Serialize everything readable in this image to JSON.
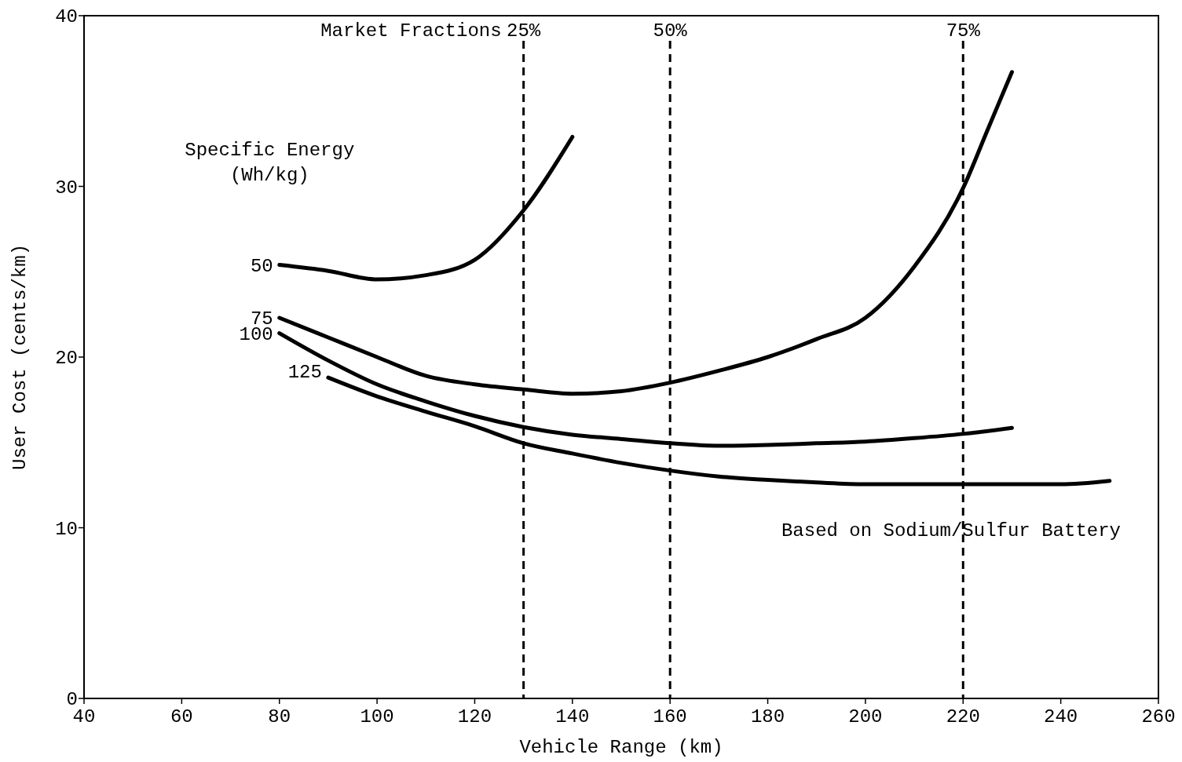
{
  "chart_data": {
    "type": "line",
    "xlabel": "Vehicle Range (km)",
    "ylabel": "User Cost (cents/km)",
    "legend_title": "Specific Energy\n(Wh/kg)",
    "xlim": [
      40,
      260
    ],
    "xticks": [
      40,
      60,
      80,
      100,
      120,
      140,
      160,
      180,
      200,
      220,
      240,
      260
    ],
    "ylim": [
      0,
      40
    ],
    "yticks": [
      0,
      10,
      20,
      30,
      40
    ],
    "grid": false,
    "marker": "none",
    "line_style": "solid",
    "series": [
      {
        "name": "50",
        "color": "#000000",
        "x": [
          80,
          90,
          100,
          110,
          120,
          130,
          140
        ],
        "values": [
          25.4,
          25.05,
          24.55,
          24.8,
          25.7,
          28.6,
          32.9
        ]
      },
      {
        "name": "75",
        "color": "#000000",
        "x": [
          80,
          90,
          100,
          110,
          120,
          130,
          140,
          150,
          160,
          170,
          180,
          190,
          200,
          210,
          220,
          225,
          230
        ],
        "values": [
          22.3,
          21.15,
          20.0,
          18.9,
          18.4,
          18.1,
          17.85,
          18.0,
          18.5,
          19.2,
          20.0,
          21.05,
          22.3,
          25.3,
          29.9,
          33.3,
          36.7
        ]
      },
      {
        "name": "100",
        "color": "#000000",
        "x": [
          80,
          90,
          100,
          110,
          120,
          130,
          140,
          150,
          160,
          170,
          180,
          190,
          200,
          210,
          220,
          230
        ],
        "values": [
          21.4,
          19.8,
          18.4,
          17.4,
          16.55,
          15.9,
          15.45,
          15.2,
          14.95,
          14.8,
          14.85,
          14.95,
          15.05,
          15.25,
          15.5,
          15.85
        ]
      },
      {
        "name": "125",
        "color": "#000000",
        "x": [
          90,
          100,
          110,
          120,
          130,
          140,
          150,
          160,
          170,
          180,
          190,
          200,
          210,
          220,
          230,
          240,
          250
        ],
        "values": [
          18.8,
          17.7,
          16.8,
          15.95,
          14.95,
          14.35,
          13.8,
          13.35,
          13.0,
          12.8,
          12.65,
          12.55,
          12.55,
          12.55,
          12.55,
          12.55,
          12.75
        ]
      }
    ],
    "ref_lines": [
      {
        "axis": "x",
        "value": 130,
        "line_style": "dashed",
        "color": "#000000"
      },
      {
        "axis": "x",
        "value": 160,
        "line_style": "dashed",
        "color": "#000000"
      },
      {
        "axis": "x",
        "value": 220,
        "line_style": "dashed",
        "color": "#000000"
      }
    ],
    "annotations": [
      "Market Fractions",
      "25%",
      "50%",
      "75%",
      "Based on Sodium/Sulfur Battery"
    ]
  }
}
